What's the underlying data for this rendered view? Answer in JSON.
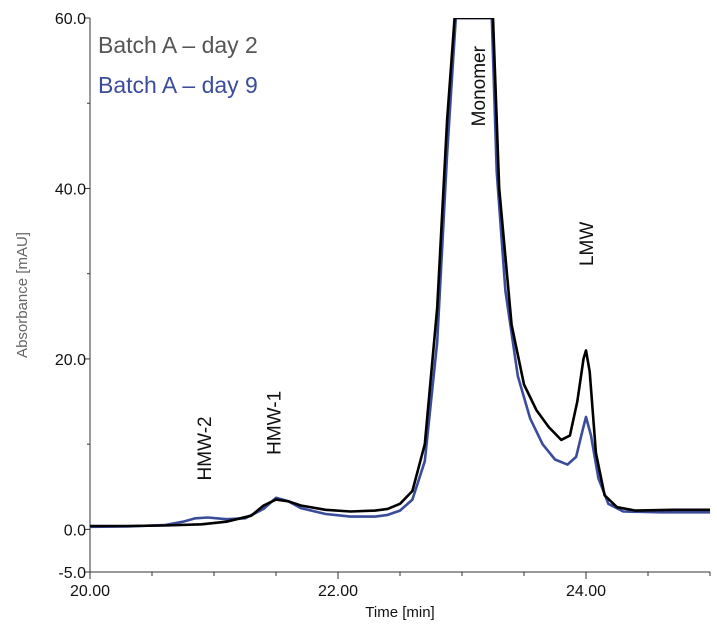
{
  "chart_data": {
    "type": "line",
    "title": "",
    "xlabel": "Time [min]",
    "ylabel": "Absorbance [mAU]",
    "xlim": [
      20.0,
      25.0
    ],
    "ylim": [
      -5.0,
      60.0
    ],
    "x_ticks": [
      "20.00",
      "22.00",
      "24.00"
    ],
    "y_ticks": [
      "-5.0",
      "0.0",
      "20.0",
      "40.0",
      "60.0"
    ],
    "grid": false,
    "legend_position": "top-left",
    "series": [
      {
        "name": "Batch A – day 2",
        "color": "#000000",
        "legend_color": "#555555",
        "points": [
          [
            20.0,
            0.4
          ],
          [
            20.3,
            0.4
          ],
          [
            20.6,
            0.45
          ],
          [
            20.9,
            0.6
          ],
          [
            21.1,
            0.9
          ],
          [
            21.3,
            1.6
          ],
          [
            21.4,
            2.8
          ],
          [
            21.5,
            3.5
          ],
          [
            21.6,
            3.3
          ],
          [
            21.7,
            2.8
          ],
          [
            21.9,
            2.3
          ],
          [
            22.1,
            2.1
          ],
          [
            22.3,
            2.2
          ],
          [
            22.4,
            2.4
          ],
          [
            22.5,
            3.0
          ],
          [
            22.6,
            4.5
          ],
          [
            22.7,
            10.0
          ],
          [
            22.8,
            26.0
          ],
          [
            22.88,
            48.0
          ],
          [
            22.94,
            60.0
          ],
          [
            23.25,
            60.0
          ],
          [
            23.3,
            40.0
          ],
          [
            23.4,
            24.0
          ],
          [
            23.5,
            17.0
          ],
          [
            23.6,
            14.0
          ],
          [
            23.7,
            12.0
          ],
          [
            23.8,
            10.5
          ],
          [
            23.87,
            11.0
          ],
          [
            23.93,
            15.0
          ],
          [
            23.98,
            20.0
          ],
          [
            24.0,
            21.0
          ],
          [
            24.03,
            18.5
          ],
          [
            24.08,
            9.0
          ],
          [
            24.15,
            4.0
          ],
          [
            24.25,
            2.6
          ],
          [
            24.4,
            2.2
          ],
          [
            24.7,
            2.3
          ],
          [
            25.0,
            2.3
          ]
        ]
      },
      {
        "name": "Batch A – day 9",
        "color": "#3b4c9a",
        "legend_color": "#3b4c9a",
        "points": [
          [
            20.0,
            0.3
          ],
          [
            20.3,
            0.35
          ],
          [
            20.6,
            0.5
          ],
          [
            20.75,
            0.9
          ],
          [
            20.85,
            1.3
          ],
          [
            20.95,
            1.4
          ],
          [
            21.1,
            1.2
          ],
          [
            21.25,
            1.3
          ],
          [
            21.4,
            2.4
          ],
          [
            21.5,
            3.7
          ],
          [
            21.6,
            3.3
          ],
          [
            21.7,
            2.5
          ],
          [
            21.9,
            1.8
          ],
          [
            22.1,
            1.5
          ],
          [
            22.3,
            1.5
          ],
          [
            22.4,
            1.7
          ],
          [
            22.5,
            2.2
          ],
          [
            22.6,
            3.5
          ],
          [
            22.7,
            8.0
          ],
          [
            22.8,
            22.0
          ],
          [
            22.88,
            44.0
          ],
          [
            22.95,
            60.0
          ],
          [
            23.24,
            60.0
          ],
          [
            23.28,
            42.0
          ],
          [
            23.35,
            28.0
          ],
          [
            23.45,
            18.0
          ],
          [
            23.55,
            13.0
          ],
          [
            23.65,
            10.0
          ],
          [
            23.75,
            8.2
          ],
          [
            23.85,
            7.6
          ],
          [
            23.92,
            8.5
          ],
          [
            23.97,
            11.5
          ],
          [
            24.0,
            13.2
          ],
          [
            24.04,
            11.0
          ],
          [
            24.1,
            6.0
          ],
          [
            24.18,
            3.0
          ],
          [
            24.3,
            2.1
          ],
          [
            24.6,
            2.0
          ],
          [
            25.0,
            2.0
          ]
        ]
      }
    ],
    "annotations": [
      {
        "text": "HMW-2",
        "x": 20.92,
        "y": 9.5
      },
      {
        "text": "HMW-1",
        "x": 21.48,
        "y": 12.5
      },
      {
        "text": "Monomer",
        "x": 23.13,
        "y": 52.0
      },
      {
        "text": "LMW",
        "x": 24.0,
        "y": 33.5
      }
    ]
  }
}
